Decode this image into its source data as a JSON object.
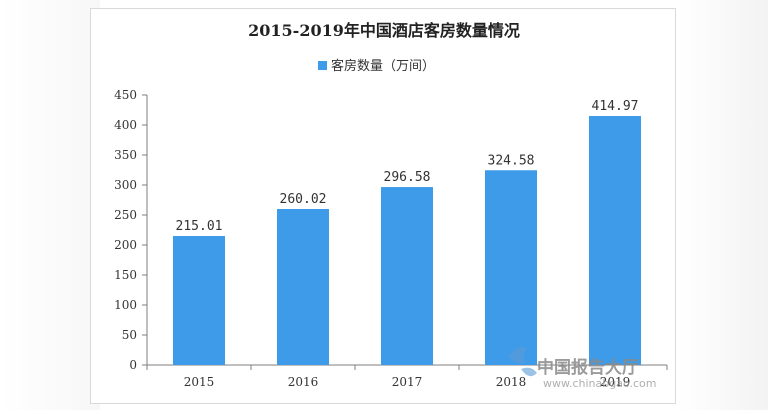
{
  "chart_data": {
    "type": "bar",
    "title": "2015-2019年中国酒店客房数量情况",
    "categories": [
      "2015",
      "2016",
      "2017",
      "2018",
      "2019"
    ],
    "series": [
      {
        "name": "客房数量（万间）",
        "values": [
          215.01,
          260.02,
          296.58,
          324.58,
          414.97
        ]
      }
    ],
    "data_labels": [
      "215.01",
      "260.02",
      "296.58",
      "324.58",
      "414.97"
    ],
    "ylim": [
      0,
      450
    ],
    "yticks": [
      0,
      50,
      100,
      150,
      200,
      250,
      300,
      350,
      400,
      450
    ],
    "xlabel": "",
    "ylabel": "",
    "grid": false,
    "legend_position": "top-center",
    "bar_color": "#3d9be9"
  },
  "watermark": {
    "text": "中国报告大厅",
    "url": "www.chinabgao.com"
  }
}
